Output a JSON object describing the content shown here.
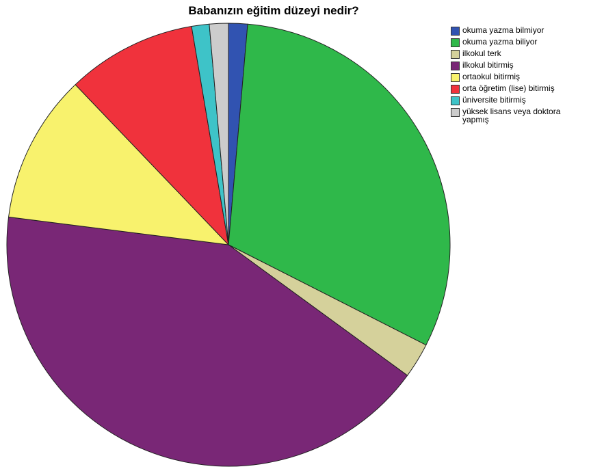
{
  "chart_data": {
    "type": "pie",
    "title": "Babanızın eğitim düzeyi nedir?",
    "categories": [
      "okuma yazma bilmiyor",
      "okuma yazma biliyor",
      "ilkokul terk",
      "ilkokul bitirmiş",
      "ortaokul bitirmiş",
      "orta öğretim (lise) bitirmiş",
      "üniversite bitirmiş",
      "yüksek lisans veya doktora yapmış"
    ],
    "values": [
      1.4,
      31.5,
      2.6,
      42.5,
      11.0,
      9.6,
      1.3,
      1.4
    ],
    "colors": [
      "#3153b1",
      "#2fb84a",
      "#d5d19b",
      "#792776",
      "#f8f26d",
      "#f0323c",
      "#3ec3c8",
      "#cccccc"
    ],
    "legend_position": "right"
  }
}
